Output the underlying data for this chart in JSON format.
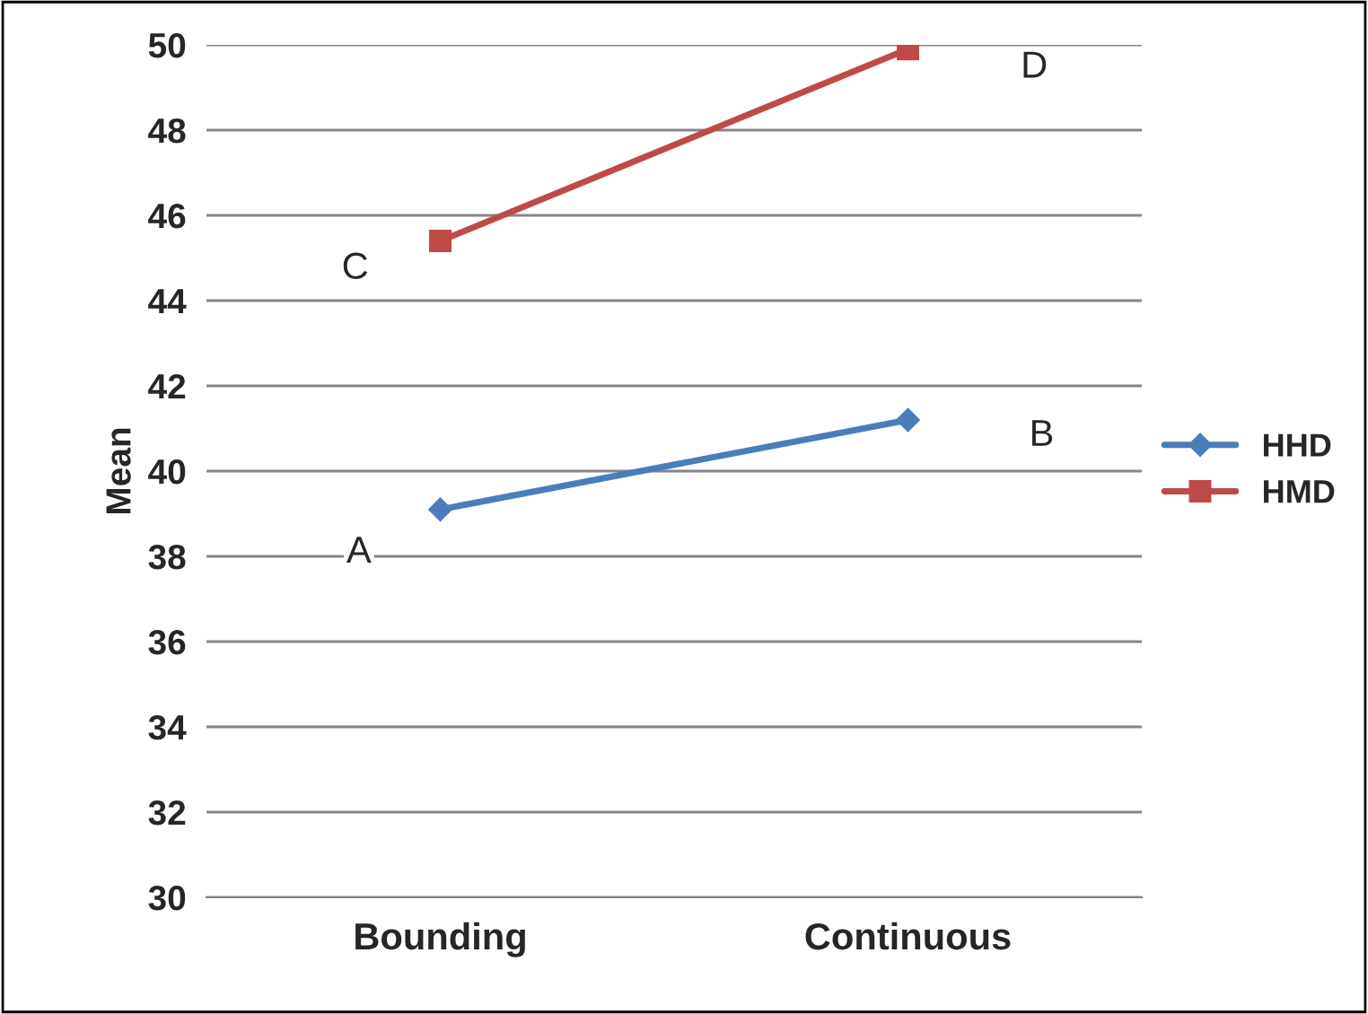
{
  "chart_data": {
    "type": "line",
    "ylabel": "Mean",
    "categories": [
      "Bounding",
      "Continuous"
    ],
    "series": [
      {
        "name": "HHD",
        "color": "#4a7ebb",
        "values": [
          39.1,
          41.2
        ],
        "marker": "diamond"
      },
      {
        "name": "HMD",
        "color": "#be4b48",
        "values": [
          45.4,
          49.9
        ],
        "marker": "square"
      }
    ],
    "ylim": [
      30,
      50
    ],
    "yticks": [
      30,
      32,
      34,
      36,
      38,
      40,
      42,
      44,
      46,
      48,
      50
    ],
    "grid": "y",
    "legend": "right",
    "line_style": "solid",
    "annotations": [
      "A",
      "B",
      "C",
      "D"
    ]
  }
}
